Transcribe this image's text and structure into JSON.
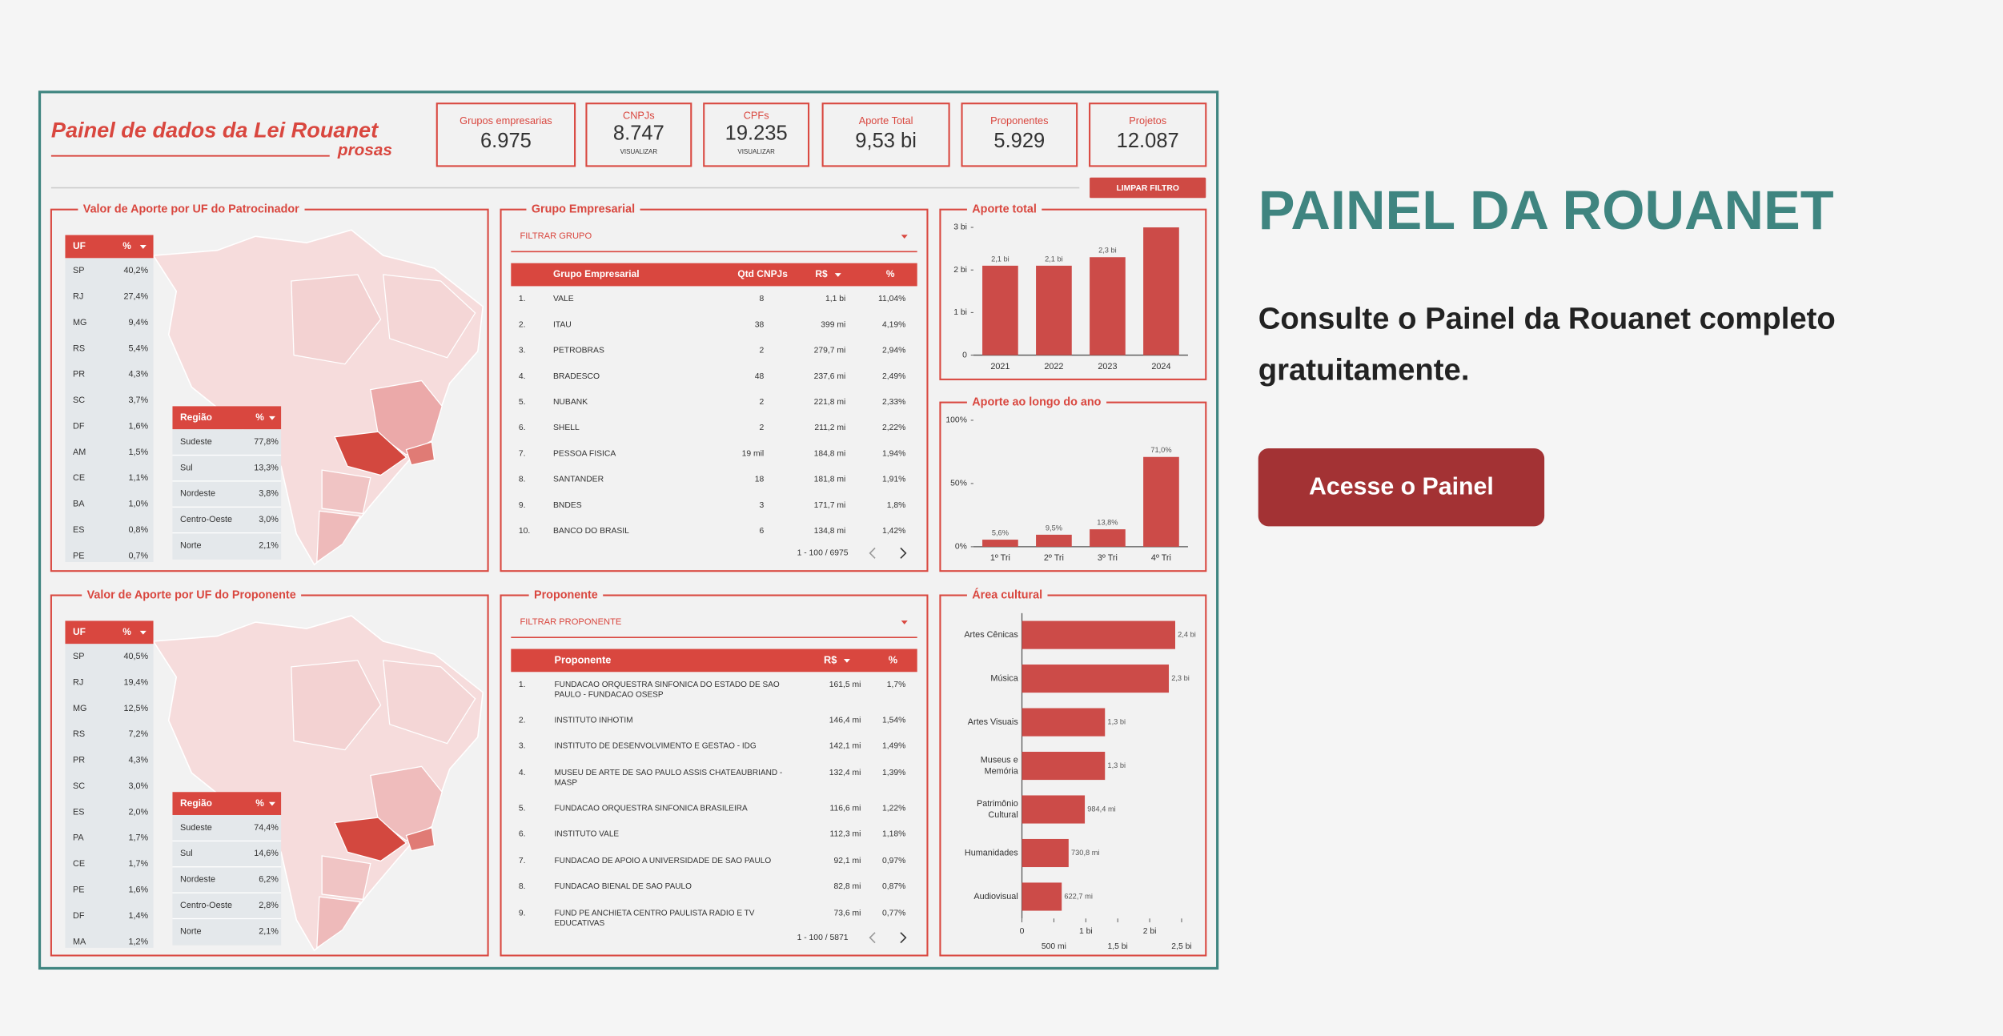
{
  "page": {
    "heading": "PAINEL DA ROUANET",
    "text_lines": [
      "Consulte o Painel da Rouanet completo",
      "gratuitamente."
    ],
    "button": "Acesse o Painel"
  },
  "dashboard": {
    "title": "Painel de dados da Lei Rouanet",
    "brand": "prosas",
    "kpis": [
      {
        "label": "Grupos empresarias",
        "value": "6.975"
      },
      {
        "label": "CNPJs",
        "value": "8.747",
        "link": "VISUALIZAR"
      },
      {
        "label": "CPFs",
        "value": "19.235",
        "link": "VISUALIZAR"
      },
      {
        "label": "Aporte Total",
        "value": "9,53 bi"
      },
      {
        "label": "Proponentes",
        "value": "5.929"
      },
      {
        "label": "Projetos",
        "value": "12.087"
      }
    ],
    "clear_filter": "LIMPAR FILTRO",
    "patrocinador_map": {
      "title": "Valor de Aporte por UF do Patrocinador",
      "uf_header": [
        "UF",
        "%"
      ],
      "uf_rows": [
        [
          "SP",
          "40,2%"
        ],
        [
          "RJ",
          "27,4%"
        ],
        [
          "MG",
          "9,4%"
        ],
        [
          "RS",
          "5,4%"
        ],
        [
          "PR",
          "4,3%"
        ],
        [
          "SC",
          "3,7%"
        ],
        [
          "DF",
          "1,6%"
        ],
        [
          "AM",
          "1,5%"
        ],
        [
          "CE",
          "1,1%"
        ],
        [
          "BA",
          "1,0%"
        ],
        [
          "ES",
          "0,8%"
        ],
        [
          "PE",
          "0,7%"
        ]
      ],
      "region_header": [
        "Região",
        "%"
      ],
      "region_rows": [
        [
          "Sudeste",
          "77,8%"
        ],
        [
          "Sul",
          "13,3%"
        ],
        [
          "Nordeste",
          "3,8%"
        ],
        [
          "Centro-Oeste",
          "3,0%"
        ],
        [
          "Norte",
          "2,1%"
        ]
      ]
    },
    "grupo_table": {
      "title": "Grupo Empresarial",
      "filter": "FILTRAR GRUPO",
      "header": [
        "Grupo Empresarial",
        "Qtd CNPJs",
        "R$",
        "%"
      ],
      "rows": [
        [
          "1.",
          "VALE",
          "8",
          "1,1 bi",
          "11,04%"
        ],
        [
          "2.",
          "ITAU",
          "38",
          "399 mi",
          "4,19%"
        ],
        [
          "3.",
          "PETROBRAS",
          "2",
          "279,7 mi",
          "2,94%"
        ],
        [
          "4.",
          "BRADESCO",
          "48",
          "237,6 mi",
          "2,49%"
        ],
        [
          "5.",
          "NUBANK",
          "2",
          "221,8 mi",
          "2,33%"
        ],
        [
          "6.",
          "SHELL",
          "2",
          "211,2 mi",
          "2,22%"
        ],
        [
          "7.",
          "PESSOA FISICA",
          "19 mil",
          "184,8 mi",
          "1,94%"
        ],
        [
          "8.",
          "SANTANDER",
          "18",
          "181,8 mi",
          "1,91%"
        ],
        [
          "9.",
          "BNDES",
          "3",
          "171,7 mi",
          "1,8%"
        ],
        [
          "10.",
          "BANCO DO BRASIL",
          "6",
          "134,8 mi",
          "1,42%"
        ]
      ],
      "pagination": "1 - 100 / 6975"
    },
    "proponente_map": {
      "title": "Valor de Aporte por UF do Proponente",
      "uf_header": [
        "UF",
        "%"
      ],
      "uf_rows": [
        [
          "SP",
          "40,5%"
        ],
        [
          "RJ",
          "19,4%"
        ],
        [
          "MG",
          "12,5%"
        ],
        [
          "RS",
          "7,2%"
        ],
        [
          "PR",
          "4,3%"
        ],
        [
          "SC",
          "3,0%"
        ],
        [
          "ES",
          "2,0%"
        ],
        [
          "PA",
          "1,7%"
        ],
        [
          "CE",
          "1,7%"
        ],
        [
          "PE",
          "1,6%"
        ],
        [
          "DF",
          "1,4%"
        ],
        [
          "MA",
          "1,2%"
        ]
      ],
      "region_header": [
        "Região",
        "%"
      ],
      "region_rows": [
        [
          "Sudeste",
          "74,4%"
        ],
        [
          "Sul",
          "14,6%"
        ],
        [
          "Nordeste",
          "6,2%"
        ],
        [
          "Centro-Oeste",
          "2,8%"
        ],
        [
          "Norte",
          "2,1%"
        ]
      ]
    },
    "proponente_table": {
      "title": "Proponente",
      "filter": "FILTRAR PROPONENTE",
      "header": [
        "Proponente",
        "R$",
        "%"
      ],
      "rows": [
        {
          "rank": "1.",
          "name_lines": [
            "FUNDACAO ORQUESTRA SINFONICA DO ESTADO DE SAO",
            "PAULO - FUNDACAO OSESP"
          ],
          "value": "161,5 mi",
          "share": "1,7%"
        },
        {
          "rank": "2.",
          "name_lines": [
            "INSTITUTO INHOTIM"
          ],
          "value": "146,4 mi",
          "share": "1,54%"
        },
        {
          "rank": "3.",
          "name_lines": [
            "INSTITUTO DE DESENVOLVIMENTO E GESTAO - IDG"
          ],
          "value": "142,1 mi",
          "share": "1,49%"
        },
        {
          "rank": "4.",
          "name_lines": [
            "MUSEU DE ARTE DE SAO PAULO ASSIS CHATEAUBRIAND -",
            "MASP"
          ],
          "value": "132,4 mi",
          "share": "1,39%"
        },
        {
          "rank": "5.",
          "name_lines": [
            "FUNDACAO ORQUESTRA SINFONICA BRASILEIRA"
          ],
          "value": "116,6 mi",
          "share": "1,22%"
        },
        {
          "rank": "6.",
          "name_lines": [
            "INSTITUTO VALE"
          ],
          "value": "112,3 mi",
          "share": "1,18%"
        },
        {
          "rank": "7.",
          "name_lines": [
            "FUNDACAO DE APOIO A UNIVERSIDADE DE SAO PAULO"
          ],
          "value": "92,1 mi",
          "share": "0,97%"
        },
        {
          "rank": "8.",
          "name_lines": [
            "FUNDACAO BIENAL DE SAO PAULO"
          ],
          "value": "82,8 mi",
          "share": "0,87%"
        },
        {
          "rank": "9.",
          "name_lines": [
            "FUND PE ANCHIETA CENTRO PAULISTA RADIO E TV",
            "EDUCATIVAS"
          ],
          "value": "73,6 mi",
          "share": "0,77%"
        }
      ],
      "pagination": "1 - 100 / 5871"
    }
  },
  "chart_data": [
    {
      "type": "bar",
      "title": "Aporte total",
      "categories": [
        "2021",
        "2022",
        "2023",
        "2024"
      ],
      "values": [
        2.1,
        2.1,
        2.3,
        3.0
      ],
      "value_labels": [
        "2,1 bi",
        "2,1 bi",
        "2,3 bi",
        null
      ],
      "color": "#cc4b48",
      "ylim": [
        0,
        3
      ],
      "yticks": [
        0,
        {
          "value": 1,
          "label": "1 bi"
        },
        {
          "value": 2,
          "label": "2 bi"
        },
        {
          "value": 3,
          "label": "3 bi"
        }
      ]
    },
    {
      "type": "bar",
      "title": "Aporte ao longo do ano",
      "categories": [
        "1º Tri",
        "2º Tri",
        "3º Tri",
        "4º Tri"
      ],
      "values": [
        5.6,
        9.5,
        13.8,
        71.0
      ],
      "value_labels": [
        "5,6%",
        "9,5%",
        "13,8%",
        "71,0%"
      ],
      "color": "#cc4b48",
      "ylim": [
        0,
        100
      ],
      "yticks": [
        {
          "value": 0,
          "label": "0%"
        },
        {
          "value": 50,
          "label": "50%"
        },
        {
          "value": 100,
          "label": "100%"
        }
      ]
    },
    {
      "type": "bar",
      "orientation": "horizontal",
      "title": "Área cultural",
      "categories": [
        "Artes Cênicas",
        "Música",
        "Artes Visuais",
        "Museus e Memória",
        "Patrimônio Cultural",
        "Humanidades",
        "Audiovisual"
      ],
      "values": [
        2.4,
        2.3,
        1.3,
        1.3,
        0.9844,
        0.7308,
        0.6227
      ],
      "value_labels": [
        "2,4 bi",
        "2,3 bi",
        "1,3 bi",
        "1,3 bi",
        "984,4 mi",
        "730,8 mi",
        "622,7 mi"
      ],
      "color": "#cc4b48",
      "xlim": [
        0,
        2.8
      ],
      "xticks": [
        0,
        {
          "value": 0.5,
          "label": "500 mi"
        },
        {
          "value": 1,
          "label": "1 bi"
        },
        {
          "value": 1.5,
          "label": "1,5 bi"
        },
        {
          "value": 2,
          "label": "2 bi"
        },
        {
          "value": 2.5,
          "label": "2,5 bi"
        }
      ]
    }
  ]
}
